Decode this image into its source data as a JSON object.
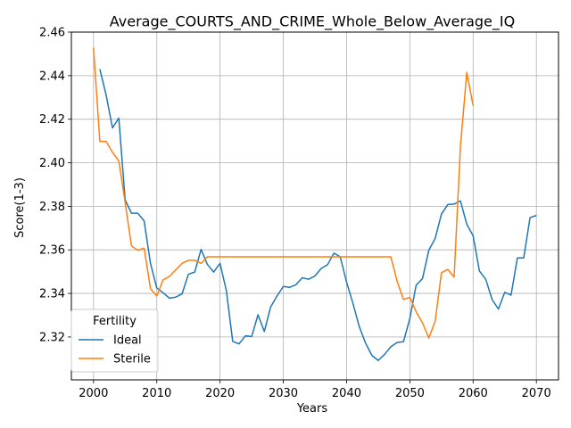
{
  "chart_data": {
    "type": "line",
    "title": "Average_COURTS_AND_CRIME_Whole_Below_Average_IQ",
    "xlabel": "Years",
    "ylabel": "Score(1-3)",
    "xlim": [
      1996.5,
      2073.5
    ],
    "ylim": [
      2.3003,
      2.46
    ],
    "xticks": [
      2000,
      2010,
      2020,
      2030,
      2040,
      2050,
      2060,
      2070
    ],
    "yticks": [
      2.32,
      2.34,
      2.36,
      2.38,
      2.4,
      2.42,
      2.44,
      2.46
    ],
    "grid": true,
    "legend": {
      "title": "Fertility",
      "position": "lower-left"
    },
    "series": [
      {
        "name": "Ideal",
        "color": "#1f77b4",
        "x": [
          2001,
          2002,
          2003,
          2004,
          2005,
          2006,
          2007,
          2008,
          2009,
          2010,
          2011,
          2012,
          2013,
          2014,
          2015,
          2016,
          2017,
          2018,
          2019,
          2020,
          2021,
          2022,
          2023,
          2024,
          2025,
          2026,
          2027,
          2028,
          2029,
          2030,
          2031,
          2032,
          2033,
          2034,
          2035,
          2036,
          2037,
          2038,
          2039,
          2040,
          2041,
          2042,
          2043,
          2044,
          2045,
          2046,
          2047,
          2048,
          2049,
          2050,
          2051,
          2052,
          2053,
          2054,
          2055,
          2056,
          2057,
          2058,
          2059,
          2060,
          2061,
          2062,
          2063,
          2064,
          2065,
          2066,
          2067,
          2068,
          2069,
          2070
        ],
        "y": [
          2.443,
          2.431,
          2.416,
          2.4205,
          2.383,
          2.3768,
          2.3768,
          2.3733,
          2.3538,
          2.3425,
          2.3403,
          2.3378,
          2.3383,
          2.3398,
          2.3488,
          2.3498,
          2.3602,
          2.3533,
          2.3498,
          2.3538,
          2.3412,
          2.318,
          2.3168,
          2.3205,
          2.3202,
          2.3302,
          2.3225,
          2.3338,
          2.3388,
          2.3432,
          2.3428,
          2.344,
          2.3472,
          2.3465,
          2.348,
          2.3515,
          2.3532,
          2.3585,
          2.3568,
          2.3452,
          2.3355,
          2.3248,
          2.3172,
          2.3115,
          2.3092,
          2.312,
          2.3155,
          2.3175,
          2.3178,
          2.3285,
          2.3438,
          2.3468,
          2.3598,
          2.3652,
          2.3765,
          2.3808,
          2.381,
          2.3825,
          2.3718,
          2.3665,
          2.3503,
          2.3465,
          2.3372,
          2.3328,
          2.3405,
          2.3392,
          2.3563,
          2.3563,
          2.3748,
          2.3758
        ]
      },
      {
        "name": "Sterile",
        "color": "#ff7f0e",
        "x": [
          2000,
          2001,
          2002,
          2003,
          2004,
          2005,
          2006,
          2007,
          2008,
          2009,
          2010,
          2011,
          2012,
          2013,
          2014,
          2015,
          2016,
          2017,
          2018,
          2019,
          2020,
          2021,
          2022,
          2023,
          2024,
          2025,
          2026,
          2027,
          2028,
          2029,
          2030,
          2031,
          2032,
          2033,
          2034,
          2035,
          2036,
          2037,
          2038,
          2039,
          2040,
          2041,
          2042,
          2043,
          2044,
          2045,
          2046,
          2047,
          2048,
          2049,
          2050,
          2051,
          2052,
          2053,
          2054,
          2055,
          2056,
          2057,
          2058,
          2059,
          2060
        ],
        "y": [
          2.4528,
          2.4098,
          2.4098,
          2.4048,
          2.4008,
          2.3818,
          2.3618,
          2.3598,
          2.3608,
          2.3422,
          2.3388,
          2.3462,
          2.3478,
          2.3508,
          2.3538,
          2.3552,
          2.3552,
          2.3538,
          2.3568,
          2.3568,
          2.3568,
          2.3568,
          2.3568,
          2.3568,
          2.3568,
          2.3568,
          2.3568,
          2.3568,
          2.3568,
          2.3568,
          2.3568,
          2.3568,
          2.3568,
          2.3568,
          2.3568,
          2.3568,
          2.3568,
          2.3568,
          2.3568,
          2.3568,
          2.3568,
          2.3568,
          2.3568,
          2.3568,
          2.3568,
          2.3568,
          2.3568,
          2.3568,
          2.3455,
          2.3372,
          2.3382,
          2.3315,
          2.3265,
          2.3195,
          2.3272,
          2.3495,
          2.351,
          2.3475,
          2.4075,
          2.4415,
          2.4262
        ]
      }
    ]
  }
}
